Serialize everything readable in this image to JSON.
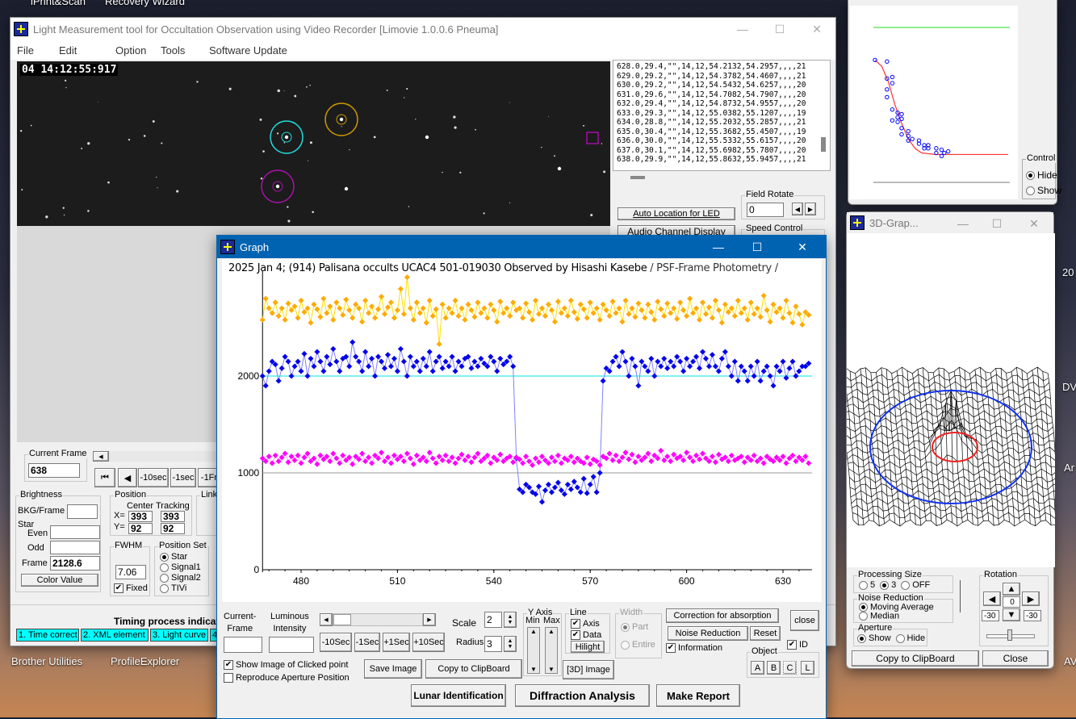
{
  "desktop": {
    "icons": [
      "iPrint&Scan",
      "Recovery Wizard",
      "Brother Utilities",
      "ProfileExplorer",
      "20",
      "DV",
      "Ar",
      "AV"
    ]
  },
  "main": {
    "title": "Light Measurement tool for Occultation Observation using Video Recorder [Limovie 1.0.0.6 Pneuma]",
    "menu": [
      "File",
      "Edit",
      "Option",
      "Tools",
      "Software Update"
    ],
    "timestamp": "04 14:12:55:917",
    "log_lines": [
      "628.0,29.4,\"\",14,12,54.2132,54.2957,,,,21",
      "629.0,29.2,\"\",14,12,54.3782,54.4607,,,,21",
      "630.0,29.2,\"\",14,12,54.5432,54.6257,,,,20",
      "631.0,29.6,\"\",14,12,54.7082,54.7907,,,,20",
      "632.0,29.4,\"\",14,12,54.8732,54.9557,,,,20",
      "633.0,29.3,\"\",14,12,55.0382,55.1207,,,,19",
      "634.0,28.8,\"\",14,12,55.2032,55.2857,,,,21",
      "635.0,30.4,\"\",14,12,55.3682,55.4507,,,,19",
      "636.0,30.0,\"\",14,12,55.5332,55.6157,,,,20",
      "637.0,30.1,\"\",14,12,55.6982,55.7807,,,,20",
      "638.0,29.9,\"\",14,12,55.8632,55.9457,,,,21"
    ],
    "auto_location": "Auto Location for LED",
    "audio_channel": "Audio Channel Display",
    "field_rotate": {
      "label": "Field Rotate",
      "value": "0"
    },
    "speed_control": "Speed Control",
    "current_frame": {
      "label": "Current Frame",
      "value": "638"
    },
    "nav": [
      "-10sec",
      "-1sec",
      "-1Fr"
    ],
    "brightness": {
      "label": "Brightness",
      "bkg": "BKG/Frame",
      "star": "Star",
      "even": "Even",
      "odd": "Odd",
      "frame": "Frame",
      "frame_value": "2128.6",
      "color_value": "Color Value"
    },
    "position": {
      "label": "Position",
      "center": "Center",
      "tracking": "Tracking",
      "x": "X=",
      "y": "Y=",
      "cx": "393",
      "cy": "92",
      "tx": "393",
      "ty": "92"
    },
    "link": "Link",
    "fwhm": {
      "label": "FWHM",
      "value": "7.06",
      "fixed": "Fixed"
    },
    "position_set": {
      "label": "Position Set",
      "options": [
        "Star",
        "Signal1",
        "Signal2",
        "TIVi"
      ],
      "selected": "Star"
    },
    "timing_title": "Timing process indicat",
    "timing_steps": [
      "1. Time correct",
      "2. XML element",
      "3. Light curve",
      "4"
    ]
  },
  "graph": {
    "window_title": "Graph",
    "header": "2025 Jan 4; (914) Palisana occults UCAC4 501-019030 Observed by Hisashi Kasebe",
    "header_suffix": " / PSF-Frame Photometry /",
    "controls": {
      "current_frame": "Current-\nFrame",
      "luminous": "Luminous\nIntensity",
      "scale_label": "Scale",
      "scale": "2",
      "radius_label": "Radius",
      "radius": "3",
      "steps": [
        "-10Sec",
        "-1Sec",
        "+1Sec",
        "+10Sec"
      ],
      "yaxis": "Y Axis",
      "min": "Min",
      "max": "Max",
      "line": "Line",
      "axis": "Axis",
      "data": "Data",
      "hilight": "Hilight",
      "width": "Width",
      "part": "Part",
      "entire": "Entire",
      "correction": "Correction for absorption",
      "noise": "Noise Reduction",
      "reset": "Reset",
      "close": "close",
      "information": "Information",
      "id": "ID",
      "object": "Object",
      "objects": [
        "A",
        "B",
        "C",
        "L"
      ],
      "show_image": "Show Image of Clicked point",
      "reproduce": "Reproduce Aperture Position",
      "save_image": "Save Image",
      "copy": "Copy to ClipBoard",
      "image3d": "[3D] Image",
      "lunar": "Lunar Identification",
      "diffraction": "Diffraction Analysis",
      "report": "Make Report"
    }
  },
  "chart_data": [
    {
      "type": "line",
      "x_start": 468,
      "xlim": [
        468,
        639
      ],
      "ylim": [
        0,
        3000
      ],
      "xticks": [
        480,
        510,
        540,
        570,
        600,
        630
      ],
      "yticks": [
        0,
        1000,
        2000
      ],
      "reference_lines": [
        {
          "y": 2000,
          "color": "#00e5e5"
        },
        {
          "y": 1000,
          "color": "#999999"
        }
      ],
      "series": [
        {
          "color": "#ffaa00",
          "line_color": "#ffe000",
          "values": [
            2580,
            2800,
            2700,
            2650,
            2760,
            2620,
            2700,
            2580,
            2750,
            2680,
            2720,
            2600,
            2780,
            2660,
            2700,
            2550,
            2740,
            2690,
            2610,
            2800,
            2650,
            2720,
            2580,
            2760,
            2700,
            2630,
            2790,
            2680,
            2600,
            2740,
            2700,
            2560,
            2780,
            2650,
            2720,
            2600,
            2690,
            2820,
            2640,
            2710,
            2760,
            2600,
            2680,
            2900,
            2640,
            3020,
            2700,
            2580,
            2760,
            2650,
            2700,
            2550,
            2780,
            2620,
            2690,
            2330,
            2740,
            2600,
            2700,
            2650,
            2780,
            2620,
            2700,
            2580,
            2740,
            2680,
            2610,
            2760,
            2650,
            2700,
            2600,
            2740,
            2680,
            2560,
            2770,
            2650,
            2700,
            2620,
            2760,
            2680,
            2700,
            2600,
            2750,
            2660,
            2580,
            2780,
            2640,
            2700,
            2620,
            2740,
            2680,
            2560,
            2770,
            2650,
            2700,
            2620,
            2780,
            2660,
            2590,
            2740,
            2690,
            2600,
            2760,
            2650,
            2700,
            2580,
            2740,
            2680,
            2620,
            2770,
            2650,
            2700,
            2560,
            2780,
            2640,
            2700,
            2610,
            2750,
            2680,
            2600,
            2740,
            2660,
            2580,
            2770,
            2690,
            2620,
            2750,
            2650,
            2700,
            2590,
            2760,
            2680,
            2620,
            2800,
            2650,
            2700,
            2580,
            2760,
            2640,
            2710,
            2600,
            2780,
            2680,
            2550,
            2740,
            2660,
            2700,
            2620,
            2780,
            2650,
            2700,
            2580,
            2760,
            2640,
            2700,
            2610,
            2830,
            2680,
            2560,
            2740,
            2660,
            2700,
            2600,
            2780,
            2650,
            2550,
            2720,
            2640,
            2530,
            2660,
            2630
          ]
        },
        {
          "color": "#0000ee",
          "line_color": "#8080ff",
          "values": [
            2000,
            1900,
            2050,
            2150,
            2120,
            1950,
            2080,
            2200,
            2150,
            2000,
            2100,
            2150,
            2050,
            2230,
            2000,
            2180,
            2100,
            2250,
            2150,
            2050,
            2200,
            2120,
            2280,
            2150,
            2050,
            2180,
            2200,
            2100,
            2350,
            2200,
            2150,
            2050,
            2250,
            2100,
            2180,
            2000,
            2200,
            2150,
            2080,
            2220,
            2100,
            2180,
            2050,
            2280,
            2150,
            2000,
            2200,
            2100,
            2150,
            2050,
            2180,
            2100,
            2250,
            2050,
            2150,
            2200,
            2080,
            2150,
            2100,
            2200,
            2050,
            2150,
            2100,
            2180,
            2200,
            2080,
            2150,
            2100,
            2180,
            2130,
            2100,
            2200,
            2150,
            2050,
            2180,
            2120,
            2150,
            2200,
            2100,
            1150,
            830,
            800,
            880,
            850,
            800,
            780,
            860,
            700,
            820,
            880,
            800,
            850,
            900,
            820,
            780,
            880,
            830,
            910,
            850,
            800,
            940,
            790,
            880,
            960,
            800,
            1000,
            1950,
            2080,
            2050,
            2150,
            2200,
            2100,
            2250,
            2150,
            2000,
            2180,
            2100,
            1900,
            2150,
            2100,
            2050,
            2180,
            2000,
            2150,
            2100,
            2180,
            2080,
            2150,
            2100,
            2200,
            2150,
            2050,
            2180,
            2100,
            2150,
            2200,
            2080,
            2250,
            2180,
            2100,
            2220,
            2100,
            2050,
            2180,
            2250,
            2100,
            2000,
            2150,
            1950,
            2100,
            2050,
            1950,
            2100,
            2000,
            2150,
            1950,
            2050,
            2100,
            2000,
            1900,
            2100,
            2050,
            2150,
            1980,
            2080,
            2150,
            2000,
            2050,
            2100,
            2100,
            2130
          ]
        },
        {
          "color": "#ff00ff",
          "line_color": "#ff9cff",
          "values": [
            1150,
            1120,
            1170,
            1100,
            1180,
            1120,
            1160,
            1200,
            1110,
            1170,
            1130,
            1180,
            1100,
            1160,
            1200,
            1120,
            1150,
            1090,
            1180,
            1140,
            1170,
            1120,
            1200,
            1150,
            1100,
            1180,
            1130,
            1160,
            1090,
            1170,
            1140,
            1200,
            1120,
            1160,
            1100,
            1180,
            1150,
            1210,
            1120,
            1160,
            1100,
            1180,
            1140,
            1170,
            1120,
            1200,
            1150,
            1090,
            1180,
            1130,
            1160,
            1120,
            1210,
            1150,
            1100,
            1170,
            1130,
            1180,
            1120,
            1160,
            1100,
            1150,
            1190,
            1130,
            1170,
            1110,
            1160,
            1200,
            1120,
            1150,
            1180,
            1100,
            1160,
            1130,
            1190,
            1120,
            1150,
            1170,
            1110,
            1160,
            1140,
            1100,
            1170,
            1120,
            1080,
            1150,
            1110,
            1170,
            1130,
            1100,
            1160,
            1120,
            1180,
            1100,
            1150,
            1130,
            1170,
            1110,
            1150,
            1120,
            1100,
            1160,
            1090,
            1140,
            1120,
            1080,
            1170,
            1150,
            1200,
            1130,
            1180,
            1120,
            1160,
            1210,
            1140,
            1190,
            1110,
            1170,
            1130,
            1160,
            1200,
            1120,
            1180,
            1150,
            1230,
            1130,
            1170,
            1120,
            1190,
            1150,
            1170,
            1130,
            1210,
            1160,
            1120,
            1180,
            1140,
            1200,
            1150,
            1120,
            1170,
            1110,
            1190,
            1140,
            1160,
            1120,
            1180,
            1130,
            1150,
            1170,
            1110,
            1160,
            1130,
            1180,
            1120,
            1150,
            1100,
            1170,
            1140,
            1120,
            1160,
            1130,
            1170,
            1100,
            1150,
            1180,
            1120,
            1160,
            1130,
            1170,
            1100
          ]
        }
      ]
    },
    {
      "type": "scatter",
      "points": [
        [
          0,
          0.79
        ],
        [
          0.09,
          0.78
        ],
        [
          0.09,
          0.67
        ],
        [
          0.13,
          0.68
        ],
        [
          0.13,
          0.64
        ],
        [
          0.09,
          0.6
        ],
        [
          0.09,
          0.55
        ],
        [
          0.13,
          0.47
        ],
        [
          0.17,
          0.45
        ],
        [
          0.2,
          0.44
        ],
        [
          0.17,
          0.42
        ],
        [
          0.2,
          0.41
        ],
        [
          0.13,
          0.4
        ],
        [
          0.17,
          0.39
        ],
        [
          0.2,
          0.35
        ],
        [
          0.25,
          0.33
        ],
        [
          0.2,
          0.31
        ],
        [
          0.25,
          0.3
        ],
        [
          0.28,
          0.28
        ],
        [
          0.25,
          0.27
        ],
        [
          0.33,
          0.27
        ],
        [
          0.33,
          0.25
        ],
        [
          0.37,
          0.24
        ],
        [
          0.4,
          0.24
        ],
        [
          0.37,
          0.22
        ],
        [
          0.4,
          0.22
        ],
        [
          0.46,
          0.22
        ],
        [
          0.5,
          0.21
        ],
        [
          0.46,
          0.19
        ],
        [
          0.52,
          0.19
        ],
        [
          0.55,
          0.2
        ],
        [
          0.5,
          0.17
        ]
      ],
      "fit_line": [
        [
          0,
          0.79
        ],
        [
          0.05,
          0.75
        ],
        [
          0.1,
          0.65
        ],
        [
          0.15,
          0.5
        ],
        [
          0.2,
          0.38
        ],
        [
          0.25,
          0.28
        ],
        [
          0.3,
          0.22
        ],
        [
          0.35,
          0.19
        ],
        [
          0.45,
          0.18
        ],
        [
          1,
          0.18
        ]
      ],
      "control": {
        "label": "Control",
        "options": [
          "Hide",
          "Show"
        ],
        "selected": "Hide"
      }
    }
  ],
  "graph3d": {
    "window_title": "3D-Grap...",
    "processing_size": {
      "label": "Processing Size",
      "options": [
        "5",
        "3",
        "OFF"
      ],
      "selected": "3"
    },
    "noise": {
      "label": "Noise Reduction",
      "options": [
        "Moving Average",
        "Median"
      ],
      "selected": "Moving Average"
    },
    "aperture": {
      "label": "Aperture",
      "options": [
        "Show",
        "Hide"
      ],
      "selected": "Show"
    },
    "rotation": {
      "label": "Rotation",
      "value": "0",
      "left": "-30",
      "right": "-30"
    },
    "copy": "Copy to ClipBoard",
    "close": "Close"
  }
}
